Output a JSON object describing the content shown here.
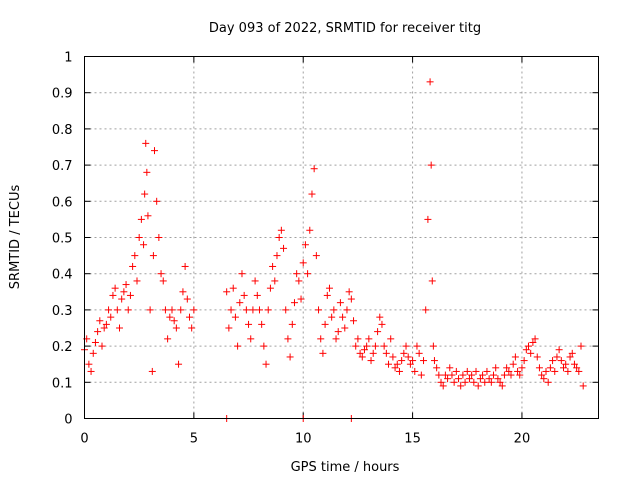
{
  "chart_data": {
    "type": "scatter",
    "title": "Day 093 of 2022, SRMTID for receiver titg",
    "xlabel": "GPS time / hours",
    "ylabel": "SRMTID / TECUs",
    "xlim": [
      0,
      23.5
    ],
    "ylim": [
      0,
      1
    ],
    "grid": true,
    "marker": "+",
    "series_color": "#ff0000",
    "xticks": [
      0,
      5,
      10,
      15,
      20
    ],
    "xtick_labels": [
      "0",
      "5",
      "10",
      "15",
      "20"
    ],
    "yticks": [
      0,
      0.1,
      0.2,
      0.3,
      0.4,
      0.5,
      0.6,
      0.7,
      0.8,
      0.9,
      1
    ],
    "ytick_labels": [
      "0",
      "0.1",
      "0.2",
      "0.3",
      "0.4",
      "0.5",
      "0.6",
      "0.7",
      "0.8",
      "0.9",
      "1"
    ],
    "series": [
      {
        "name": "SRMTID",
        "x": [
          0.0,
          0.1,
          0.2,
          0.3,
          0.4,
          0.5,
          0.6,
          0.7,
          0.8,
          0.9,
          1.0,
          1.1,
          1.2,
          1.3,
          1.4,
          1.5,
          1.6,
          1.7,
          1.8,
          1.9,
          2.0,
          2.1,
          2.2,
          2.3,
          2.4,
          2.5,
          2.6,
          2.7,
          2.75,
          2.8,
          2.85,
          2.9,
          3.0,
          3.1,
          3.15,
          3.2,
          3.3,
          3.4,
          3.5,
          3.6,
          3.7,
          3.8,
          3.9,
          4.0,
          4.1,
          4.2,
          4.3,
          4.4,
          4.5,
          4.6,
          4.7,
          4.8,
          4.9,
          5.0,
          6.5,
          6.6,
          6.7,
          6.8,
          6.9,
          7.0,
          7.1,
          7.2,
          7.3,
          7.4,
          7.5,
          7.6,
          7.7,
          7.8,
          7.9,
          8.0,
          8.1,
          8.2,
          8.3,
          8.4,
          8.5,
          8.6,
          8.7,
          8.8,
          8.9,
          9.0,
          9.1,
          9.2,
          9.3,
          9.4,
          9.5,
          9.6,
          9.7,
          9.8,
          9.9,
          10.0,
          10.1,
          10.2,
          10.3,
          10.4,
          10.5,
          10.6,
          10.7,
          10.8,
          10.9,
          11.0,
          11.1,
          11.2,
          11.3,
          11.4,
          11.5,
          11.6,
          11.7,
          11.8,
          11.9,
          12.0,
          12.1,
          12.2,
          12.3,
          12.4,
          12.5,
          12.6,
          12.7,
          12.8,
          12.9,
          13.0,
          13.1,
          13.2,
          13.3,
          13.4,
          13.5,
          13.6,
          13.7,
          13.8,
          13.9,
          14.0,
          14.1,
          14.2,
          14.3,
          14.4,
          14.5,
          14.6,
          14.7,
          14.8,
          14.9,
          15.0,
          15.1,
          15.2,
          15.3,
          15.4,
          15.5,
          15.6,
          15.7,
          15.8,
          15.85,
          15.9,
          15.95,
          16.0,
          16.1,
          16.2,
          16.3,
          16.4,
          16.5,
          16.6,
          16.7,
          16.8,
          16.9,
          17.0,
          17.1,
          17.2,
          17.3,
          17.4,
          17.5,
          17.6,
          17.7,
          17.8,
          17.9,
          18.0,
          18.1,
          18.2,
          18.3,
          18.4,
          18.5,
          18.6,
          18.7,
          18.8,
          18.9,
          19.0,
          19.1,
          19.2,
          19.3,
          19.4,
          19.5,
          19.6,
          19.7,
          19.8,
          19.9,
          20.0,
          20.1,
          20.2,
          20.3,
          20.4,
          20.5,
          20.6,
          20.7,
          20.8,
          20.9,
          21.0,
          21.1,
          21.2,
          21.3,
          21.4,
          21.5,
          21.6,
          21.7,
          21.8,
          21.9,
          22.0,
          22.1,
          22.2,
          22.3,
          22.4,
          22.5,
          22.6,
          22.7,
          22.8,
          6.5,
          10.0,
          12.2
        ],
        "y": [
          0.19,
          0.22,
          0.15,
          0.13,
          0.18,
          0.21,
          0.24,
          0.27,
          0.2,
          0.25,
          0.26,
          0.3,
          0.28,
          0.34,
          0.36,
          0.3,
          0.25,
          0.33,
          0.35,
          0.37,
          0.3,
          0.34,
          0.42,
          0.45,
          0.38,
          0.5,
          0.55,
          0.48,
          0.62,
          0.76,
          0.68,
          0.56,
          0.3,
          0.13,
          0.45,
          0.74,
          0.6,
          0.5,
          0.4,
          0.38,
          0.3,
          0.22,
          0.28,
          0.3,
          0.27,
          0.25,
          0.15,
          0.3,
          0.35,
          0.42,
          0.33,
          0.28,
          0.25,
          0.3,
          0.35,
          0.25,
          0.3,
          0.36,
          0.28,
          0.2,
          0.32,
          0.4,
          0.34,
          0.3,
          0.26,
          0.22,
          0.3,
          0.38,
          0.34,
          0.3,
          0.26,
          0.2,
          0.15,
          0.3,
          0.36,
          0.42,
          0.38,
          0.45,
          0.5,
          0.52,
          0.47,
          0.3,
          0.22,
          0.17,
          0.26,
          0.32,
          0.4,
          0.38,
          0.33,
          0.43,
          0.48,
          0.4,
          0.52,
          0.62,
          0.69,
          0.45,
          0.3,
          0.22,
          0.18,
          0.26,
          0.34,
          0.36,
          0.28,
          0.3,
          0.22,
          0.24,
          0.32,
          0.28,
          0.25,
          0.3,
          0.35,
          0.33,
          0.27,
          0.2,
          0.22,
          0.18,
          0.17,
          0.19,
          0.2,
          0.22,
          0.16,
          0.18,
          0.2,
          0.24,
          0.28,
          0.26,
          0.2,
          0.18,
          0.15,
          0.22,
          0.17,
          0.14,
          0.15,
          0.13,
          0.16,
          0.18,
          0.2,
          0.17,
          0.15,
          0.16,
          0.13,
          0.2,
          0.18,
          0.12,
          0.16,
          0.3,
          0.55,
          0.93,
          0.7,
          0.38,
          0.2,
          0.16,
          0.14,
          0.12,
          0.1,
          0.09,
          0.12,
          0.11,
          0.14,
          0.12,
          0.1,
          0.13,
          0.11,
          0.09,
          0.12,
          0.1,
          0.13,
          0.11,
          0.12,
          0.1,
          0.13,
          0.09,
          0.11,
          0.12,
          0.1,
          0.13,
          0.11,
          0.1,
          0.12,
          0.14,
          0.11,
          0.1,
          0.09,
          0.12,
          0.14,
          0.13,
          0.12,
          0.15,
          0.17,
          0.13,
          0.12,
          0.14,
          0.16,
          0.19,
          0.2,
          0.18,
          0.21,
          0.22,
          0.17,
          0.14,
          0.12,
          0.11,
          0.13,
          0.1,
          0.14,
          0.16,
          0.13,
          0.17,
          0.19,
          0.16,
          0.14,
          0.15,
          0.13,
          0.17,
          0.18,
          0.15,
          0.14,
          0.13,
          0.2,
          0.09,
          0.0,
          0.0,
          0.0
        ]
      }
    ]
  }
}
